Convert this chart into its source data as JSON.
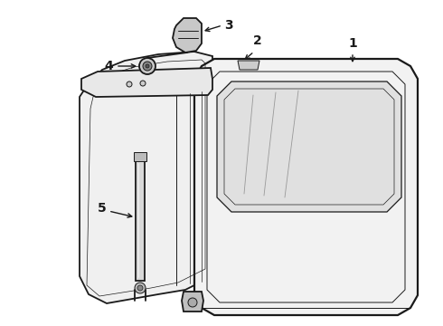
{
  "background_color": "#ffffff",
  "line_color": "#1a1a1a",
  "label_color": "#000000",
  "figsize": [
    4.9,
    3.6
  ],
  "dpi": 100,
  "lw_main": 1.3,
  "lw_thin": 0.7,
  "lw_thick": 2.0,
  "label_fontsize": 10,
  "gate_fill": "#f2f2f2",
  "inner_fill": "#eeeeee",
  "window_fill": "#e0e0e0"
}
